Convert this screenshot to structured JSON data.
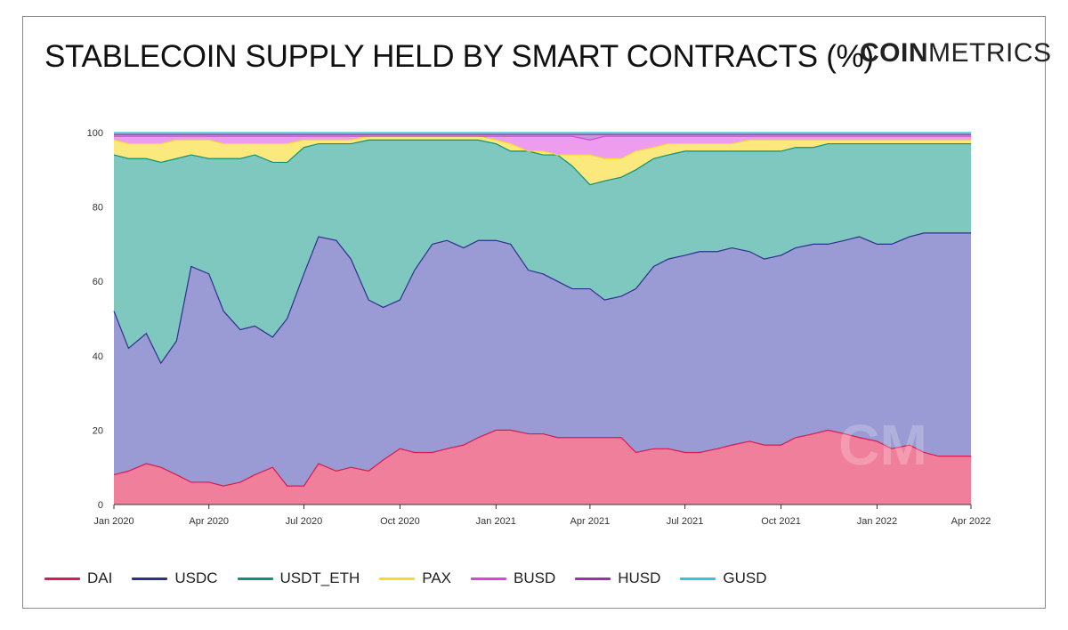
{
  "title": "STABLECOIN SUPPLY HELD BY SMART CONTRACTS (%)",
  "logo": {
    "bold": "COIN",
    "light": "METRICS"
  },
  "chart_data": {
    "type": "area",
    "stacked": true,
    "x": [
      "2020-01-01",
      "2020-01-15",
      "2020-02-01",
      "2020-02-15",
      "2020-03-01",
      "2020-03-15",
      "2020-04-01",
      "2020-04-15",
      "2020-05-01",
      "2020-05-15",
      "2020-06-01",
      "2020-06-15",
      "2020-07-01",
      "2020-07-15",
      "2020-08-01",
      "2020-08-15",
      "2020-09-01",
      "2020-09-15",
      "2020-10-01",
      "2020-10-15",
      "2020-11-01",
      "2020-11-15",
      "2020-12-01",
      "2020-12-15",
      "2021-01-01",
      "2021-01-15",
      "2021-02-01",
      "2021-02-15",
      "2021-03-01",
      "2021-03-15",
      "2021-04-01",
      "2021-04-15",
      "2021-05-01",
      "2021-05-15",
      "2021-06-01",
      "2021-06-15",
      "2021-07-01",
      "2021-07-15",
      "2021-08-01",
      "2021-08-15",
      "2021-09-01",
      "2021-09-15",
      "2021-10-01",
      "2021-10-15",
      "2021-11-01",
      "2021-11-15",
      "2021-12-01",
      "2021-12-15",
      "2022-01-01",
      "2022-01-15",
      "2022-02-01",
      "2022-02-15",
      "2022-03-01",
      "2022-03-15",
      "2022-04-01"
    ],
    "cumulative_top": {
      "DAI": [
        8,
        9,
        11,
        10,
        8,
        6,
        6,
        5,
        6,
        8,
        10,
        5,
        5,
        11,
        9,
        10,
        9,
        12,
        15,
        14,
        14,
        15,
        16,
        18,
        20,
        20,
        19,
        19,
        18,
        18,
        18,
        18,
        18,
        14,
        15,
        15,
        14,
        14,
        15,
        16,
        17,
        16,
        16,
        18,
        19,
        20,
        19,
        18,
        17,
        15,
        16,
        14,
        13,
        13,
        13
      ],
      "USDC": [
        52,
        42,
        46,
        38,
        44,
        64,
        62,
        52,
        47,
        48,
        45,
        50,
        62,
        72,
        71,
        66,
        55,
        53,
        55,
        63,
        70,
        71,
        69,
        71,
        71,
        70,
        63,
        62,
        60,
        58,
        58,
        55,
        56,
        58,
        64,
        66,
        67,
        68,
        68,
        69,
        68,
        66,
        67,
        69,
        70,
        70,
        71,
        72,
        70,
        70,
        72,
        73,
        73,
        73,
        73
      ],
      "USDT_ETH": [
        94,
        93,
        93,
        92,
        93,
        94,
        93,
        93,
        93,
        94,
        92,
        92,
        96,
        97,
        97,
        97,
        98,
        98,
        98,
        98,
        98,
        98,
        98,
        98,
        97,
        95,
        95,
        94,
        94,
        91,
        86,
        87,
        88,
        90,
        93,
        94,
        95,
        95,
        95,
        95,
        95,
        95,
        95,
        96,
        96,
        97,
        97,
        97,
        97,
        97,
        97,
        97,
        97,
        97,
        97
      ],
      "PAX": [
        98,
        97,
        97,
        97,
        98,
        98,
        98,
        97,
        97,
        97,
        97,
        97,
        98,
        98,
        98,
        98,
        99,
        99,
        99,
        99,
        99,
        99,
        99,
        99,
        98,
        97,
        95,
        95,
        94,
        94,
        94,
        93,
        93,
        95,
        96,
        97,
        97,
        97,
        97,
        97,
        98,
        98,
        98,
        98,
        98,
        98,
        98,
        98,
        98,
        98,
        98,
        98,
        98,
        98,
        98
      ],
      "BUSD": [
        99,
        99,
        99,
        99,
        99,
        99,
        99,
        99,
        99,
        99,
        99,
        99,
        99,
        99,
        99,
        99,
        99,
        99,
        99,
        99,
        99,
        99,
        99,
        99,
        99,
        99,
        99,
        99,
        99,
        99,
        98,
        99,
        99,
        99,
        99,
        99,
        99,
        99,
        99,
        99,
        99,
        99,
        99,
        99,
        99,
        99,
        99,
        99,
        99,
        99,
        99,
        99,
        99,
        99,
        99
      ],
      "HUSD": [
        99.5,
        99.5,
        99.5,
        99.5,
        99.5,
        99.5,
        99.5,
        99.5,
        99.5,
        99.5,
        99.5,
        99.5,
        99.5,
        99.5,
        99.5,
        99.5,
        99.5,
        99.5,
        99.5,
        99.5,
        99.5,
        99.5,
        99.5,
        99.5,
        99.5,
        99.5,
        99.5,
        99.5,
        99.5,
        99.5,
        99.5,
        99.5,
        99.5,
        99.5,
        99.5,
        99.5,
        99.5,
        99.5,
        99.5,
        99.5,
        99.5,
        99.5,
        99.5,
        99.5,
        99.5,
        99.5,
        99.5,
        99.5,
        99.5,
        99.5,
        99.5,
        99.5,
        99.5,
        99.5,
        99.5
      ],
      "GUSD": [
        100,
        100,
        100,
        100,
        100,
        100,
        100,
        100,
        100,
        100,
        100,
        100,
        100,
        100,
        100,
        100,
        100,
        100,
        100,
        100,
        100,
        100,
        100,
        100,
        100,
        100,
        100,
        100,
        100,
        100,
        100,
        100,
        100,
        100,
        100,
        100,
        100,
        100,
        100,
        100,
        100,
        100,
        100,
        100,
        100,
        100,
        100,
        100,
        100,
        100,
        100,
        100,
        100,
        100,
        100
      ]
    },
    "series": [
      {
        "name": "DAI",
        "line": "#d81b52",
        "fill": "#f07f9c"
      },
      {
        "name": "USDC",
        "line": "#2f2f8f",
        "fill": "#9a9ad4"
      },
      {
        "name": "USDT_ETH",
        "line": "#109078",
        "fill": "#7fc8c0"
      },
      {
        "name": "PAX",
        "line": "#f5dc2a",
        "fill": "#fbe97e"
      },
      {
        "name": "BUSD",
        "line": "#e040e0",
        "fill": "#ee9cee"
      },
      {
        "name": "HUSD",
        "line": "#9a2fb0",
        "fill": "#c996d8"
      },
      {
        "name": "GUSD",
        "line": "#2ec8d8",
        "fill": "#90dfe8"
      }
    ],
    "ylim": [
      0,
      100
    ],
    "yticks": [
      "0",
      "20",
      "40",
      "60",
      "80",
      "100"
    ],
    "ytick_values": [
      0,
      20,
      40,
      60,
      80,
      100
    ],
    "xticks": [
      "Jan 2020",
      "Apr 2020",
      "Jul 2020",
      "Oct 2020",
      "Jan 2021",
      "Apr 2021",
      "Jul 2021",
      "Oct 2021",
      "Jan 2022",
      "Apr 2022"
    ],
    "xtick_dates": [
      "2020-01-01",
      "2020-04-01",
      "2020-07-01",
      "2020-10-01",
      "2021-01-01",
      "2021-04-01",
      "2021-07-01",
      "2021-10-01",
      "2022-01-01",
      "2022-04-01"
    ],
    "grid": true,
    "legend_position": "bottom",
    "watermark": "CM"
  }
}
